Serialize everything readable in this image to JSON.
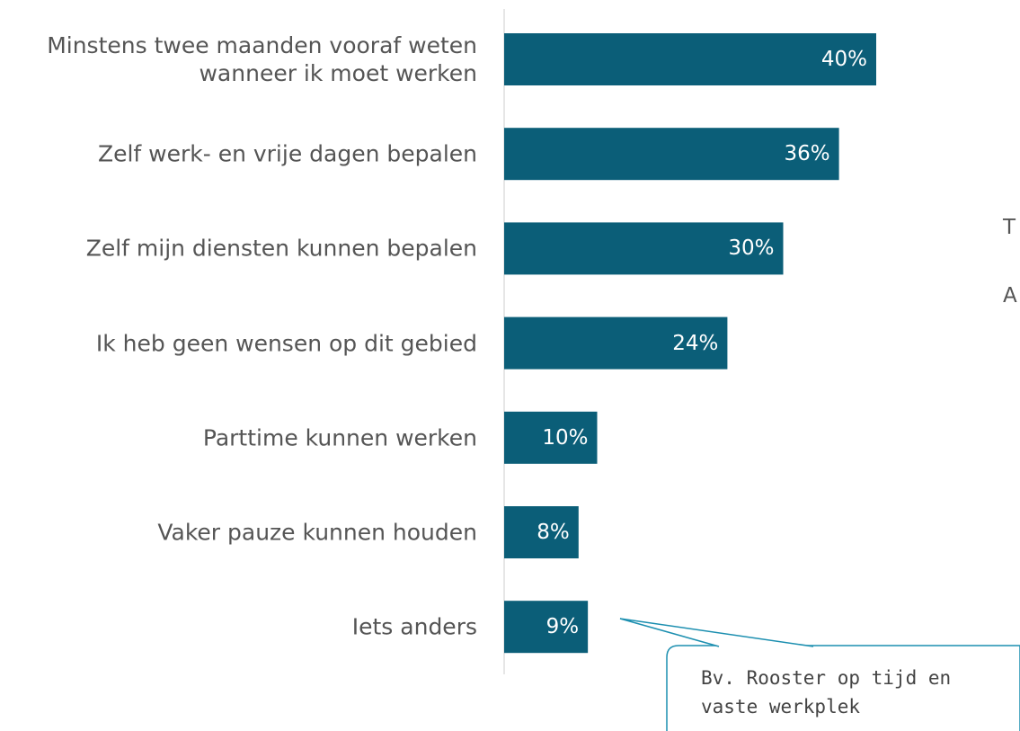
{
  "chart_data": {
    "type": "barh",
    "categories": [
      "Minstens twee maanden vooraf weten\nwanneer ik moet werken",
      "Zelf werk- en vrije dagen bepalen",
      "Zelf mijn diensten kunnen bepalen",
      "Ik heb geen wensen op dit gebied",
      "Parttime kunnen werken",
      "Vaker pauze kunnen houden",
      "Iets anders"
    ],
    "values": [
      40,
      36,
      30,
      24,
      10,
      8,
      9
    ],
    "value_labels": [
      "40%",
      "36%",
      "30%",
      "24%",
      "10%",
      "8%",
      "9%"
    ],
    "color": "#0b5e78",
    "annotation": "Bv. Rooster op tijd en\nvaste werkplek",
    "side_texts": [
      "T",
      "A"
    ]
  }
}
